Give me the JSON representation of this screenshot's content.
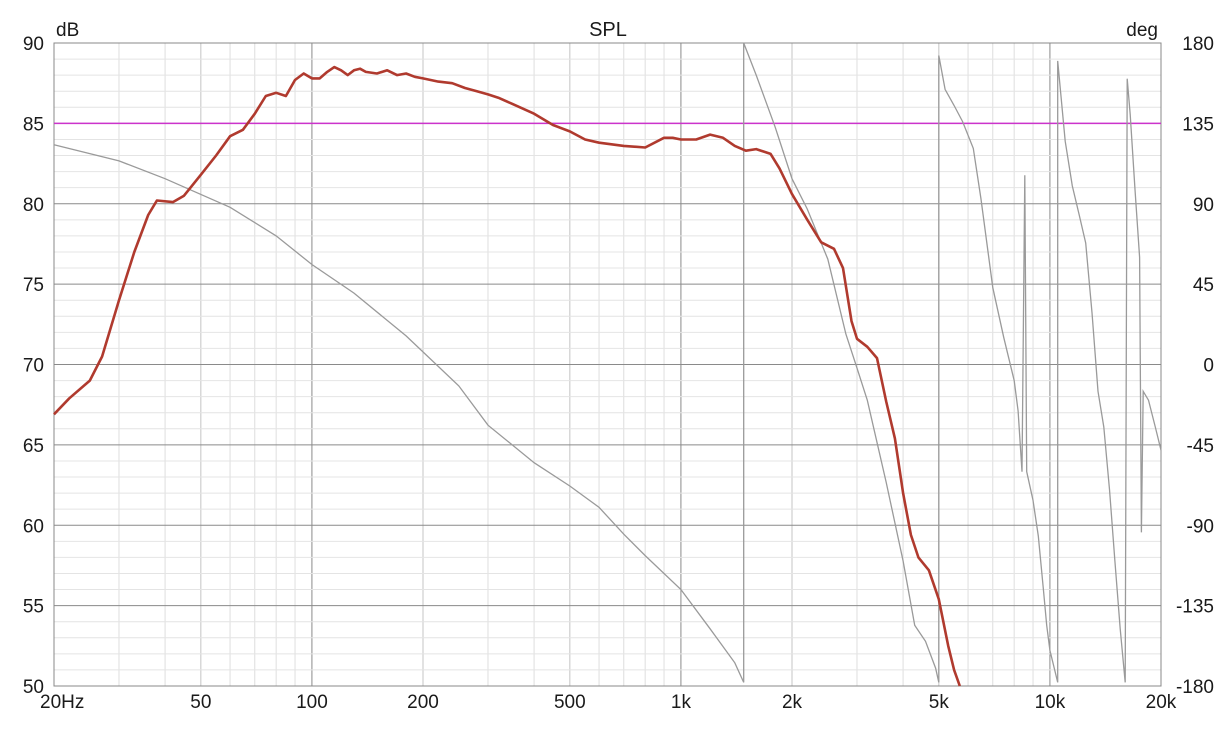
{
  "chart_data": {
    "type": "line",
    "title": "SPL",
    "ylabel_left": "dB",
    "ylabel_right": "deg",
    "x_scale": "log",
    "xlim": [
      20,
      20000
    ],
    "ylim_left": [
      50,
      90
    ],
    "ylim_right": [
      -180,
      180
    ],
    "grid": true,
    "x_ticks": [
      {
        "value": 20,
        "label": "20Hz"
      },
      {
        "value": 50,
        "label": "50"
      },
      {
        "value": 100,
        "label": "100"
      },
      {
        "value": 200,
        "label": "200"
      },
      {
        "value": 500,
        "label": "500"
      },
      {
        "value": 1000,
        "label": "1k"
      },
      {
        "value": 2000,
        "label": "2k"
      },
      {
        "value": 5000,
        "label": "5k"
      },
      {
        "value": 10000,
        "label": "10k"
      },
      {
        "value": 20000,
        "label": "20k"
      }
    ],
    "y_ticks_left": [
      {
        "value": 90,
        "label": "90"
      },
      {
        "value": 85,
        "label": "85"
      },
      {
        "value": 80,
        "label": "80"
      },
      {
        "value": 75,
        "label": "75"
      },
      {
        "value": 70,
        "label": "70"
      },
      {
        "value": 65,
        "label": "65"
      },
      {
        "value": 60,
        "label": "60"
      },
      {
        "value": 55,
        "label": "55"
      },
      {
        "value": 50,
        "label": "50"
      }
    ],
    "y_ticks_right": [
      {
        "value": 180,
        "label": "180"
      },
      {
        "value": 135,
        "label": "135"
      },
      {
        "value": 90,
        "label": "90"
      },
      {
        "value": 45,
        "label": "45"
      },
      {
        "value": 0,
        "label": "0"
      },
      {
        "value": -45,
        "label": "-45"
      },
      {
        "value": -90,
        "label": "-90"
      },
      {
        "value": -135,
        "label": "-135"
      },
      {
        "value": -180,
        "label": "-180"
      }
    ],
    "reference_line": {
      "value": 85,
      "axis": "left",
      "color": "#cc33cc"
    },
    "series": [
      {
        "axis": "left",
        "color": "#b03a2e",
        "points": [
          [
            20,
            66.9
          ],
          [
            22,
            67.9
          ],
          [
            25,
            69.0
          ],
          [
            27,
            70.5
          ],
          [
            30,
            74.0
          ],
          [
            33,
            77.0
          ],
          [
            36,
            79.3
          ],
          [
            38,
            80.2
          ],
          [
            42,
            80.1
          ],
          [
            45,
            80.5
          ],
          [
            50,
            81.8
          ],
          [
            55,
            83.0
          ],
          [
            60,
            84.2
          ],
          [
            65,
            84.6
          ],
          [
            70,
            85.6
          ],
          [
            75,
            86.7
          ],
          [
            80,
            86.9
          ],
          [
            85,
            86.7
          ],
          [
            90,
            87.7
          ],
          [
            95,
            88.1
          ],
          [
            100,
            87.8
          ],
          [
            105,
            87.8
          ],
          [
            110,
            88.2
          ],
          [
            115,
            88.5
          ],
          [
            120,
            88.3
          ],
          [
            125,
            88.0
          ],
          [
            130,
            88.3
          ],
          [
            135,
            88.4
          ],
          [
            140,
            88.2
          ],
          [
            150,
            88.1
          ],
          [
            160,
            88.3
          ],
          [
            170,
            88.0
          ],
          [
            180,
            88.1
          ],
          [
            190,
            87.9
          ],
          [
            200,
            87.8
          ],
          [
            220,
            87.6
          ],
          [
            240,
            87.5
          ],
          [
            260,
            87.2
          ],
          [
            280,
            87.0
          ],
          [
            300,
            86.8
          ],
          [
            320,
            86.6
          ],
          [
            350,
            86.2
          ],
          [
            400,
            85.6
          ],
          [
            450,
            84.9
          ],
          [
            500,
            84.5
          ],
          [
            550,
            84.0
          ],
          [
            600,
            83.8
          ],
          [
            700,
            83.6
          ],
          [
            800,
            83.5
          ],
          [
            900,
            84.1
          ],
          [
            950,
            84.1
          ],
          [
            1000,
            84.0
          ],
          [
            1100,
            84.0
          ],
          [
            1200,
            84.3
          ],
          [
            1300,
            84.1
          ],
          [
            1400,
            83.6
          ],
          [
            1500,
            83.3
          ],
          [
            1600,
            83.4
          ],
          [
            1750,
            83.1
          ],
          [
            1850,
            82.2
          ],
          [
            2000,
            80.6
          ],
          [
            2200,
            79.0
          ],
          [
            2400,
            77.6
          ],
          [
            2600,
            77.2
          ],
          [
            2750,
            76.0
          ],
          [
            2900,
            72.7
          ],
          [
            3000,
            71.6
          ],
          [
            3200,
            71.1
          ],
          [
            3400,
            70.4
          ],
          [
            3600,
            67.7
          ],
          [
            3800,
            65.4
          ],
          [
            4000,
            62.0
          ],
          [
            4200,
            59.4
          ],
          [
            4400,
            58.0
          ],
          [
            4700,
            57.2
          ],
          [
            5000,
            55.4
          ],
          [
            5300,
            52.5
          ],
          [
            5500,
            51.0
          ],
          [
            5700,
            50.0
          ]
        ]
      },
      {
        "axis": "right",
        "color": "#9a9a9a",
        "points": [
          [
            20,
            123
          ],
          [
            30,
            114
          ],
          [
            40,
            104
          ],
          [
            60,
            88
          ],
          [
            80,
            72
          ],
          [
            100,
            56
          ],
          [
            130,
            40
          ],
          [
            180,
            16
          ],
          [
            250,
            -12
          ],
          [
            300,
            -34
          ],
          [
            400,
            -55
          ],
          [
            500,
            -68
          ],
          [
            600,
            -80
          ],
          [
            700,
            -95
          ],
          [
            800,
            -107
          ],
          [
            1000,
            -126
          ],
          [
            1200,
            -148
          ],
          [
            1400,
            -167
          ],
          [
            1480,
            -178
          ],
          [
            1480,
            180
          ],
          [
            1600,
            162
          ],
          [
            1800,
            133
          ],
          [
            2000,
            104
          ],
          [
            2200,
            87
          ],
          [
            2500,
            59
          ],
          [
            2800,
            17
          ],
          [
            3000,
            -2
          ],
          [
            3200,
            -20
          ],
          [
            3600,
            -66
          ],
          [
            4000,
            -110
          ],
          [
            4300,
            -146
          ],
          [
            4600,
            -155
          ],
          [
            4900,
            -170
          ],
          [
            5000,
            -178
          ],
          [
            5000,
            173
          ],
          [
            5200,
            154
          ],
          [
            5500,
            145
          ],
          [
            5800,
            136
          ],
          [
            6200,
            121
          ],
          [
            6500,
            93
          ],
          [
            7000,
            43
          ],
          [
            7500,
            15
          ],
          [
            8000,
            -9
          ],
          [
            8200,
            -26
          ],
          [
            8400,
            -60
          ],
          [
            8550,
            106
          ],
          [
            8650,
            -60
          ],
          [
            9000,
            -76
          ],
          [
            9300,
            -96
          ],
          [
            9600,
            -126
          ],
          [
            9800,
            -146
          ],
          [
            10000,
            -160
          ],
          [
            10500,
            -178
          ],
          [
            10500,
            170
          ],
          [
            11000,
            125
          ],
          [
            11500,
            100
          ],
          [
            12000,
            84
          ],
          [
            12500,
            68
          ],
          [
            13000,
            29
          ],
          [
            13500,
            -15
          ],
          [
            14000,
            -35
          ],
          [
            14500,
            -70
          ],
          [
            15000,
            -110
          ],
          [
            15500,
            -148
          ],
          [
            16000,
            -178
          ],
          [
            16200,
            160
          ],
          [
            16500,
            140
          ],
          [
            17000,
            98
          ],
          [
            17500,
            60
          ],
          [
            17700,
            -94
          ],
          [
            17900,
            -15
          ],
          [
            18500,
            -20
          ],
          [
            19300,
            -35
          ],
          [
            20000,
            -48
          ]
        ]
      }
    ]
  }
}
